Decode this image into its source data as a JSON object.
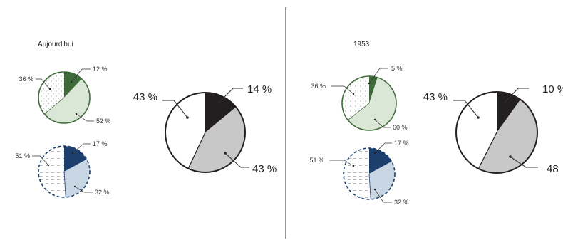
{
  "chart_data": [
    {
      "panel": "left",
      "type": "pie",
      "title": "Aujourd'hui",
      "colors": {
        "segment": "#3f6b3a",
        "segment_light": "#dbe7d6",
        "stroke": "#3f6b3a"
      },
      "values": [
        12,
        52,
        36
      ],
      "labels": [
        "12 %",
        "52 %",
        "36 %"
      ]
    },
    {
      "panel": "left",
      "type": "pie",
      "colors": {
        "segment": "#1d3f6e",
        "segment_light": "#c9d6e3",
        "stroke": "#1d3f6e"
      },
      "values": [
        17,
        32,
        51
      ],
      "labels": [
        "17 %",
        "32 %",
        "51 %"
      ]
    },
    {
      "panel": "left",
      "type": "pie",
      "colors": {
        "segment": "#231f20",
        "segment_light": "#c8c8c8",
        "stroke": "#231f20"
      },
      "values": [
        14,
        43,
        43
      ],
      "labels": [
        "14 %",
        "43 %",
        "43 %"
      ]
    },
    {
      "panel": "right",
      "type": "pie",
      "title": "1953",
      "colors": {
        "segment": "#3f6b3a",
        "segment_light": "#dbe7d6",
        "stroke": "#3f6b3a"
      },
      "values": [
        5,
        60,
        36
      ],
      "labels": [
        "5 %",
        "60 %",
        "36 %"
      ]
    },
    {
      "panel": "right",
      "type": "pie",
      "colors": {
        "segment": "#1d3f6e",
        "segment_light": "#c9d6e3",
        "stroke": "#1d3f6e"
      },
      "values": [
        17,
        32,
        51
      ],
      "labels": [
        "17 %",
        "32 %",
        "51 %"
      ]
    },
    {
      "panel": "right",
      "type": "pie",
      "colors": {
        "segment": "#231f20",
        "segment_light": "#c8c8c8",
        "stroke": "#231f20"
      },
      "values": [
        10,
        48,
        43
      ],
      "labels": [
        "10 %",
        "48",
        "43 %"
      ]
    }
  ]
}
